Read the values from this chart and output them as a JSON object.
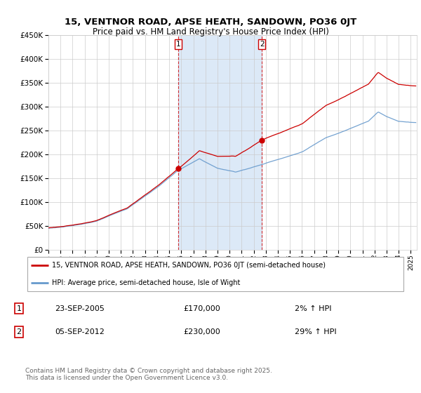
{
  "title": "15, VENTNOR ROAD, APSE HEATH, SANDOWN, PO36 0JT",
  "subtitle": "Price paid vs. HM Land Registry's House Price Index (HPI)",
  "legend_line1": "15, VENTNOR ROAD, APSE HEATH, SANDOWN, PO36 0JT (semi-detached house)",
  "legend_line2": "HPI: Average price, semi-detached house, Isle of Wight",
  "sale1_date": "23-SEP-2005",
  "sale1_price": 170000,
  "sale1_hpi": "2% ↑ HPI",
  "sale2_date": "05-SEP-2012",
  "sale2_price": 230000,
  "sale2_hpi": "29% ↑ HPI",
  "footnote": "Contains HM Land Registry data © Crown copyright and database right 2025.\nThis data is licensed under the Open Government Licence v3.0.",
  "sale1_x": 2005.73,
  "sale2_x": 2012.68,
  "background_color": "#ffffff",
  "plot_bg_color": "#ffffff",
  "shaded_color": "#dce9f7",
  "red_color": "#cc0000",
  "blue_color": "#6699cc",
  "grid_color": "#cccccc",
  "ylim": [
    0,
    450000
  ],
  "xlim_start": 1995,
  "xlim_end": 2025.5
}
